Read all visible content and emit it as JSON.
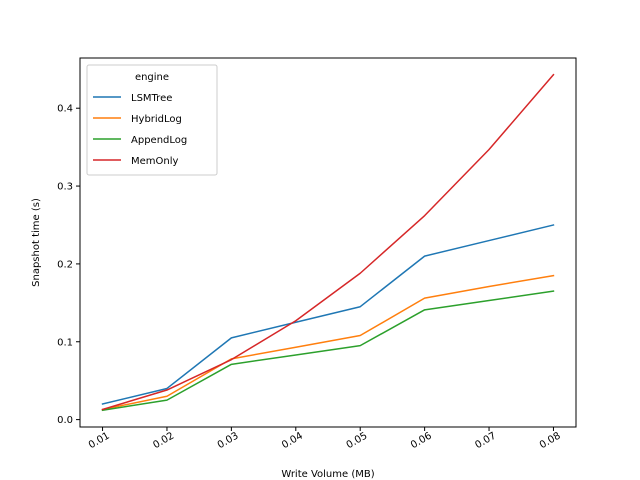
{
  "chart_data": {
    "type": "line",
    "xlabel": "Write Volume (MB)",
    "ylabel": "Snapshot time (s)",
    "x": [
      0.01,
      0.02,
      0.03,
      0.04,
      0.05,
      0.06,
      0.07,
      0.08
    ],
    "x_tick_labels": [
      "0.01",
      "0.02",
      "0.03",
      "0.04",
      "0.05",
      "0.06",
      "0.07",
      "0.08"
    ],
    "y_ticks": [
      0.0,
      0.1,
      0.2,
      0.3,
      0.4
    ],
    "y_tick_labels": [
      "0.0",
      "0.1",
      "0.2",
      "0.3",
      "0.4"
    ],
    "xlim": [
      0.0065,
      0.0835
    ],
    "ylim": [
      -0.0095,
      0.4645
    ],
    "grid": false,
    "legend": {
      "title": "engine",
      "placement": "upper-left"
    },
    "series": [
      {
        "name": "LSMTree",
        "color": "#1f77b4",
        "values": [
          0.02,
          0.04,
          0.105,
          0.125,
          0.145,
          0.21,
          0.23,
          0.25
        ]
      },
      {
        "name": "HybridLog",
        "color": "#ff7f0e",
        "values": [
          0.013,
          0.03,
          0.078,
          0.093,
          0.108,
          0.156,
          0.171,
          0.185
        ]
      },
      {
        "name": "AppendLog",
        "color": "#2ca02c",
        "values": [
          0.012,
          0.025,
          0.071,
          0.083,
          0.095,
          0.141,
          0.153,
          0.165
        ]
      },
      {
        "name": "MemOnly",
        "color": "#d62728",
        "values": [
          0.013,
          0.038,
          0.077,
          0.127,
          0.188,
          0.262,
          0.347,
          0.443
        ]
      }
    ]
  }
}
